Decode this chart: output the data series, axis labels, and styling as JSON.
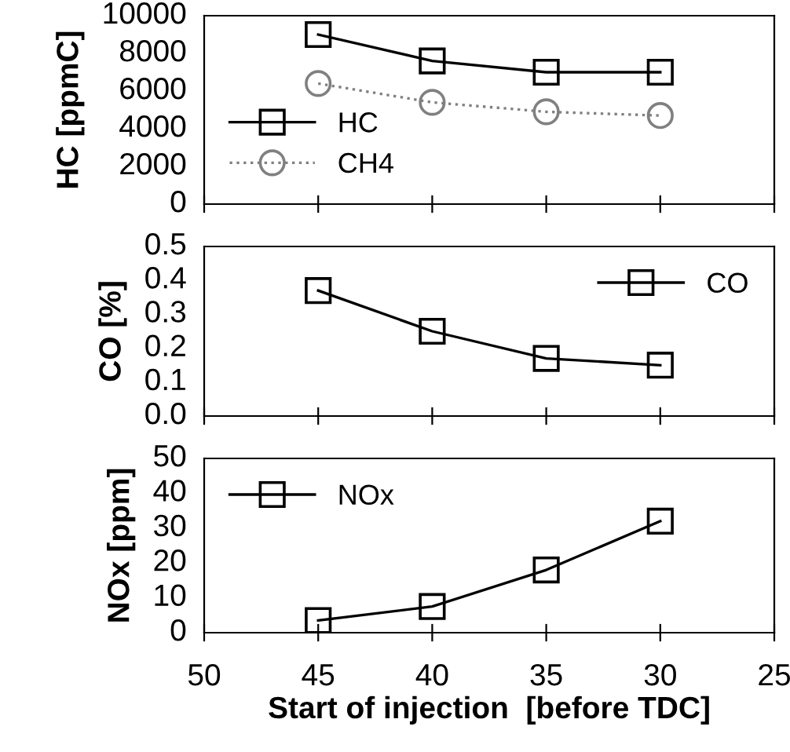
{
  "chart_data": [
    {
      "type": "line",
      "x": [
        45,
        40,
        35,
        30
      ],
      "xlim": [
        50,
        25
      ],
      "xticks": [
        50,
        45,
        40,
        35,
        30,
        25
      ],
      "ylim": [
        0,
        10000
      ],
      "yticks": [
        0,
        2000,
        4000,
        6000,
        8000,
        10000
      ],
      "ylabel": "HC [ppmC]",
      "tick_labels": "y",
      "legend": "bottom left",
      "grid": false,
      "series": [
        {
          "name": "HC",
          "color": "#000000",
          "values": [
            9000,
            7600,
            7000,
            7000
          ],
          "marker": "square",
          "line_style": "solid"
        },
        {
          "name": "CH4",
          "color": "#808080",
          "values": [
            6400,
            5400,
            4900,
            4700
          ],
          "marker": "circle",
          "line_style": "dotted"
        }
      ]
    },
    {
      "type": "line",
      "x": [
        45,
        40,
        35,
        30
      ],
      "xlim": [
        50,
        25
      ],
      "xticks": [
        50,
        45,
        40,
        35,
        30,
        25
      ],
      "ylim": [
        0,
        0.5
      ],
      "yticks": [
        {
          "value": 0,
          "label": "0.0"
        },
        0.1,
        0.2,
        0.3,
        0.4,
        0.5
      ],
      "ylabel": "CO [%]",
      "tick_labels": "y",
      "legend": "top right",
      "grid": false,
      "series": [
        {
          "name": "CO",
          "color": "#000000",
          "values": [
            0.37,
            0.25,
            0.17,
            0.15
          ],
          "marker": "square",
          "line_style": "solid"
        }
      ]
    },
    {
      "type": "line",
      "x": [
        45,
        40,
        35,
        30
      ],
      "xlim": [
        50,
        25
      ],
      "xticks": [
        50,
        45,
        40,
        35,
        30,
        25
      ],
      "ylim": [
        0,
        50
      ],
      "yticks": [
        0,
        10,
        20,
        30,
        40,
        50
      ],
      "ylabel": "NOx [ppm]",
      "xlabel": "Start of injection  [before TDC]",
      "legend": "top left",
      "grid": false,
      "series": [
        {
          "name": "NOx",
          "color": "#000000",
          "values": [
            3.5,
            7.5,
            18,
            32
          ],
          "marker": "square",
          "line_style": "solid"
        }
      ]
    }
  ]
}
